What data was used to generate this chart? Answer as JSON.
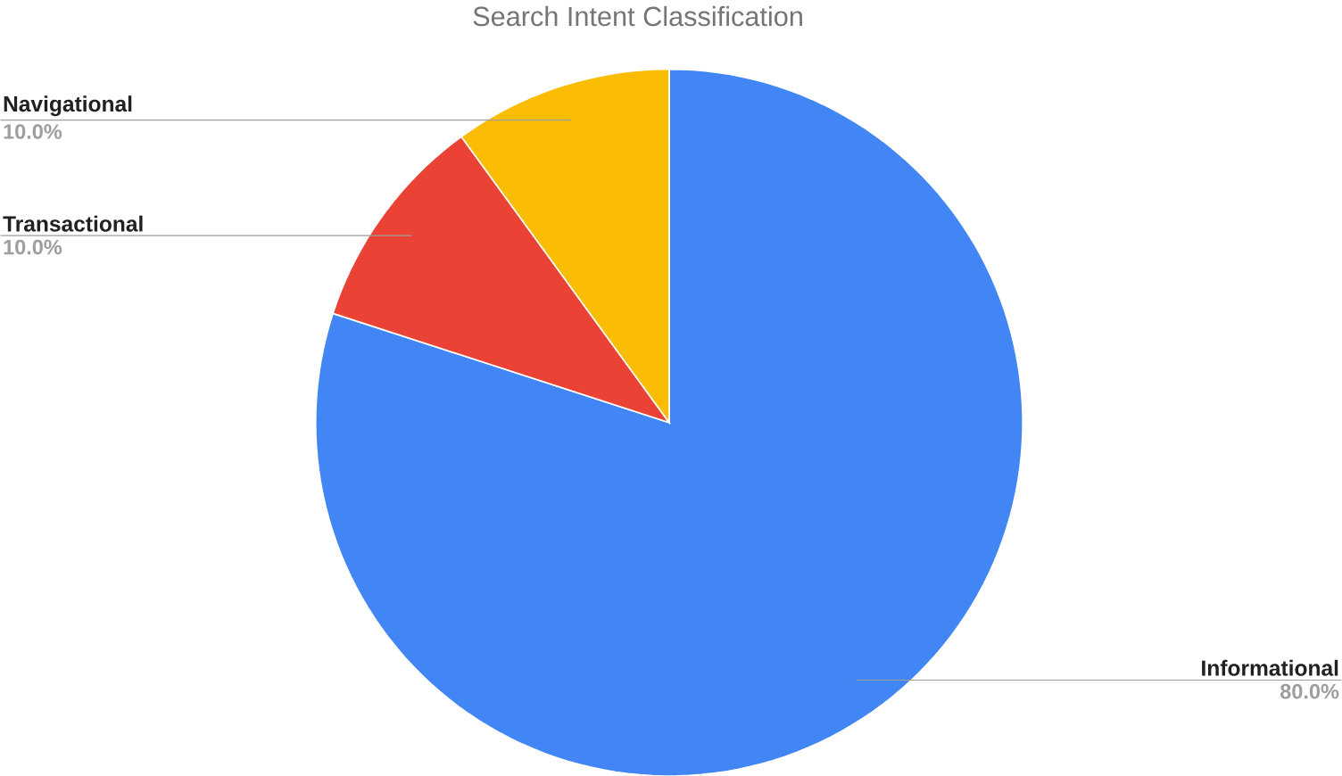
{
  "chart_data": {
    "type": "pie",
    "title": "Search Intent Classification",
    "categories": [
      "Informational",
      "Transactional",
      "Navigational"
    ],
    "values": [
      80,
      10,
      10
    ],
    "colors": [
      "#4285f4",
      "#ea4335",
      "#fbbc04"
    ],
    "value_labels": [
      "80.0%",
      "10.0%",
      "10.0%"
    ]
  }
}
